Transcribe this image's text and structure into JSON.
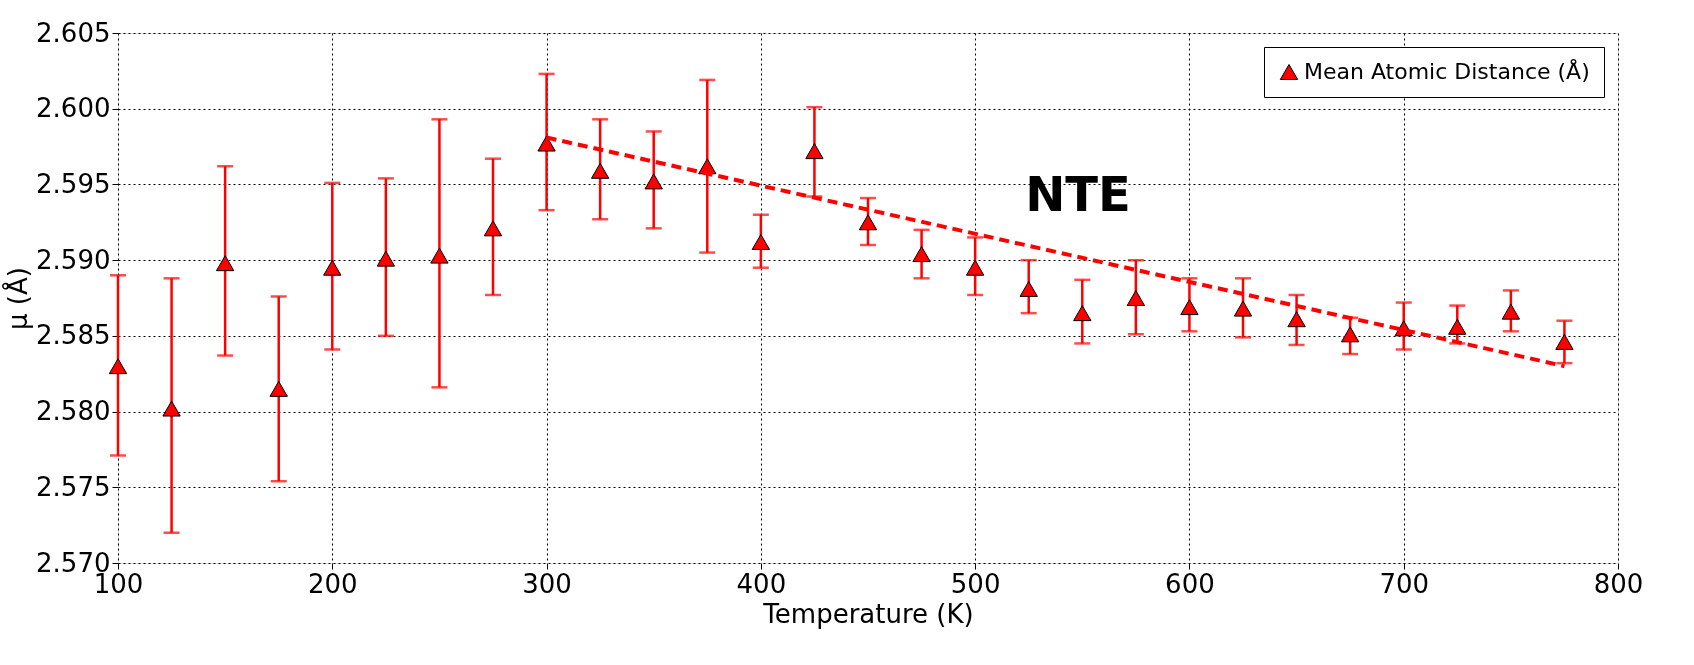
{
  "chart_data": {
    "type": "scatter",
    "xlabel": "Temperature (K)",
    "ylabel": "μ (Å)",
    "xlim": [
      100,
      800
    ],
    "xticks": [
      100,
      200,
      300,
      400,
      500,
      600,
      700,
      800
    ],
    "ylim": [
      2.57,
      2.605
    ],
    "yticks": [
      {
        "value": 2.57,
        "label": "2.570"
      },
      {
        "value": 2.575,
        "label": "2.575"
      },
      {
        "value": 2.58,
        "label": "2.580"
      },
      {
        "value": 2.585,
        "label": "2.585"
      },
      {
        "value": 2.59,
        "label": "2.590"
      },
      {
        "value": 2.595,
        "label": "2.595"
      },
      {
        "value": 2.6,
        "label": "2.600"
      },
      {
        "value": 2.605,
        "label": "2.605"
      }
    ],
    "grid": true,
    "legend": "top right",
    "annotations": [
      "NTE"
    ],
    "series": [
      {
        "name": "Mean Atomic Distance (Å)",
        "color": "#ff0000",
        "marker": "triangle",
        "x": [
          100,
          125,
          150,
          175,
          200,
          225,
          250,
          275,
          300,
          325,
          350,
          375,
          400,
          425,
          450,
          475,
          500,
          525,
          550,
          575,
          600,
          625,
          650,
          675,
          700,
          725,
          750,
          775
        ],
        "values": [
          2.583,
          2.5802,
          2.5898,
          2.5815,
          2.5895,
          2.5901,
          2.5903,
          2.5921,
          2.5977,
          2.5959,
          2.5952,
          2.5962,
          2.5912,
          2.5972,
          2.5925,
          2.5904,
          2.5895,
          2.5881,
          2.5865,
          2.5875,
          2.5869,
          2.5868,
          2.5861,
          2.5851,
          2.5855,
          2.5856,
          2.5866,
          2.5846
        ],
        "errors": [
          [
            2.5771,
            2.589
          ],
          [
            2.572,
            2.5888
          ],
          [
            2.5837,
            2.5962
          ],
          [
            2.5754,
            2.5876
          ],
          [
            2.5841,
            2.5951
          ],
          [
            2.585,
            2.5954
          ],
          [
            2.5816,
            2.5993
          ],
          [
            2.5877,
            2.5967
          ],
          [
            2.5933,
            2.6023
          ],
          [
            2.5927,
            2.5993
          ],
          [
            2.5921,
            2.5985
          ],
          [
            2.5905,
            2.6019
          ],
          [
            2.5895,
            2.593
          ],
          [
            2.5942,
            2.6001
          ],
          [
            2.591,
            2.5941
          ],
          [
            2.5888,
            2.592
          ],
          [
            2.5877,
            2.5915
          ],
          [
            2.5865,
            2.59
          ],
          [
            2.5845,
            2.5887
          ],
          [
            2.5851,
            2.59
          ],
          [
            2.5853,
            2.5888
          ],
          [
            2.5849,
            2.5888
          ],
          [
            2.5844,
            2.5877
          ],
          [
            2.5838,
            2.5862
          ],
          [
            2.5841,
            2.5872
          ],
          [
            2.5845,
            2.587
          ],
          [
            2.5853,
            2.588
          ],
          [
            2.5832,
            2.586
          ]
        ]
      },
      {
        "type": "line",
        "color": "#ff0000",
        "line_style": "dashed",
        "x": [
          300,
          775
        ],
        "values": [
          2.5981,
          2.583
        ]
      }
    ]
  }
}
